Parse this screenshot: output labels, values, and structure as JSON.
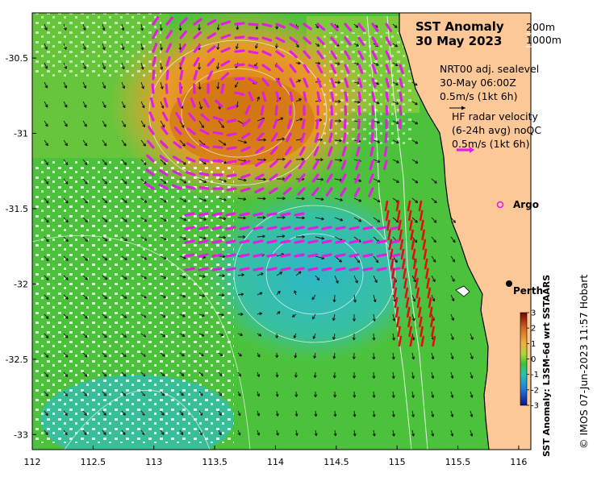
{
  "title": {
    "line1": "SST Anomaly",
    "line2": "30 May 2023"
  },
  "isobaths": {
    "a": "200m",
    "b": "1000m"
  },
  "sealevel_legend": {
    "line1": "NRT00 adj. sealevel",
    "line2": "30-May 06:00Z",
    "line3": "0.5m/s (1kt 6h)"
  },
  "radar_legend": {
    "line1": "HF radar velocity",
    "line2": "(6-24h avg) noQC",
    "line3": "0.5m/s (1kt 6h)"
  },
  "places": [
    {
      "name": "Argo",
      "lon": 115.78,
      "lat": -31.45
    },
    {
      "name": "Perth",
      "lon": 115.86,
      "lat": -31.95
    }
  ],
  "axes": {
    "x_ticks": [
      "112",
      "112.5",
      "113",
      "113.5",
      "114",
      "114.5",
      "115",
      "115.5",
      "116"
    ],
    "y_ticks": [
      "-30.5",
      "-31",
      "-31.5",
      "-32",
      "-32.5",
      "-33"
    ],
    "xlim": [
      112,
      116.1
    ],
    "ylim": [
      -33.1,
      -30.2
    ]
  },
  "colorbar": {
    "label": "SST Anomaly: L3SM-6d wrt SSTAARS",
    "ticks": [
      "3",
      "2",
      "1",
      "0",
      "-1",
      "-2",
      "-3"
    ],
    "range": [
      -3,
      3
    ]
  },
  "credit": "© IMOS 07-Jun-2023 11:57 Hobart",
  "colors": {
    "land": "#fdc898",
    "warm": "#e9931c",
    "cool": "#27bfb0",
    "neutral": "#4cc23c",
    "radar_arrow": "#e020e0",
    "hf_red_arrow": "#e01010",
    "contour": "#ffffff"
  }
}
